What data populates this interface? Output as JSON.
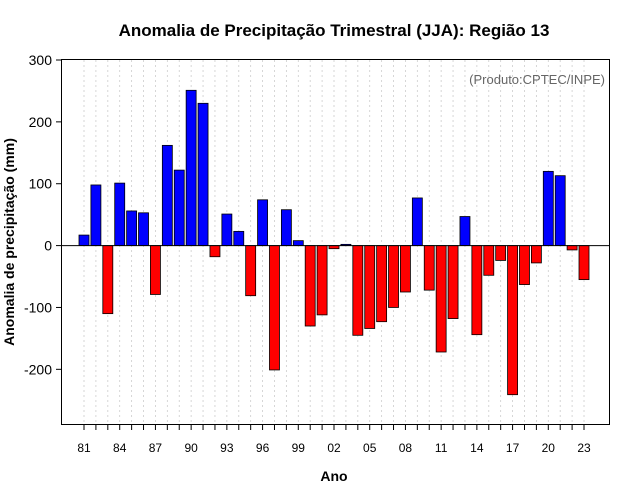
{
  "chart_data": {
    "type": "bar",
    "title": "Anomalia de Precipitação Trimestral (JJA): Região 13",
    "xlabel": "Ano",
    "ylabel": "Anomalia de precipitação (mm)",
    "credit": "(Produto:CPTEC/INPE)",
    "ylim": [
      -290,
      300
    ],
    "yticks": [
      -200,
      -100,
      0,
      100,
      200,
      300
    ],
    "years": [
      1981,
      1982,
      1983,
      1984,
      1985,
      1986,
      1987,
      1988,
      1989,
      1990,
      1991,
      1992,
      1993,
      1994,
      1995,
      1996,
      1997,
      1998,
      1999,
      2000,
      2001,
      2002,
      2003,
      2004,
      2005,
      2006,
      2007,
      2008,
      2009,
      2010,
      2011,
      2012,
      2013,
      2014,
      2015,
      2016,
      2017,
      2018,
      2019,
      2020,
      2021,
      2022,
      2023
    ],
    "xtick_labels": [
      "81",
      "84",
      "87",
      "90",
      "93",
      "96",
      "99",
      "02",
      "05",
      "08",
      "11",
      "14",
      "17",
      "20",
      "23"
    ],
    "values": [
      17,
      98,
      -110,
      101,
      56,
      53,
      -79,
      162,
      122,
      251,
      230,
      -18,
      51,
      23,
      -81,
      74,
      -201,
      58,
      8,
      -130,
      -112,
      -5,
      2,
      -145,
      -134,
      -123,
      -100,
      -75,
      77,
      -72,
      -172,
      -118,
      47,
      -144,
      -48,
      -24,
      -241,
      -63,
      -28,
      120,
      113,
      -7,
      -55
    ],
    "colors": {
      "positive": "#0000ff",
      "negative": "#ff0000",
      "grid": "#cccccc"
    }
  }
}
